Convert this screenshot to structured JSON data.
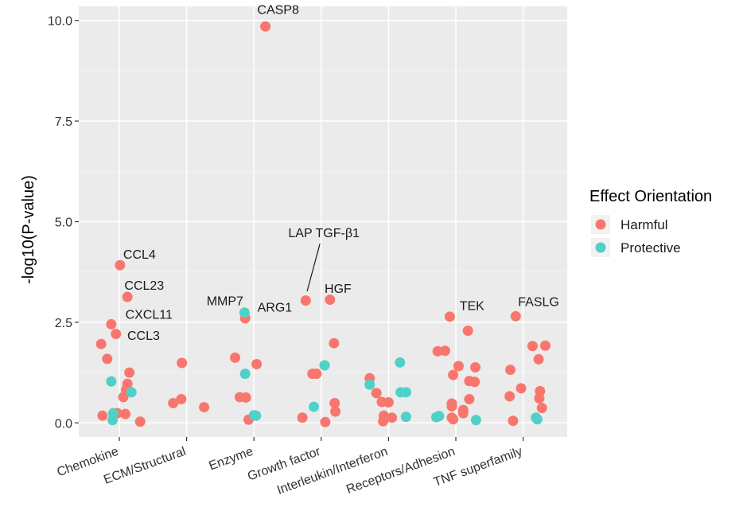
{
  "chart_data": {
    "type": "scatter",
    "title": "",
    "xlabel": "",
    "ylabel": "-log10(P-value)",
    "ylim": [
      -0.35,
      10.35
    ],
    "yticks": [
      0.0,
      2.5,
      5.0,
      7.5,
      10.0
    ],
    "ytick_labels": [
      "0.0",
      "2.5",
      "5.0",
      "7.5",
      "10.0"
    ],
    "categories": [
      "Chemokine",
      "ECM/Structural",
      "Enzyme",
      "Growth factor",
      "Interleukin/Interferon",
      "Receptors/Adhesion",
      "TNF superfamily"
    ],
    "legend": {
      "title": "Effect Orientation",
      "position": "right",
      "entries": [
        {
          "name": "Harmful",
          "color": "#F8766D"
        },
        {
          "name": "Protective",
          "color": "#4FD0C8"
        }
      ]
    },
    "series": [
      {
        "name": "Harmful",
        "color": "#F8766D",
        "points": [
          {
            "category": 0,
            "jitter": 0.01,
            "y": 3.92
          },
          {
            "category": 0,
            "jitter": 0.12,
            "y": 3.13
          },
          {
            "category": 0,
            "jitter": -0.12,
            "y": 2.45
          },
          {
            "category": 0,
            "jitter": -0.05,
            "y": 2.21
          },
          {
            "category": 0,
            "jitter": -0.27,
            "y": 1.96
          },
          {
            "category": 0,
            "jitter": -0.18,
            "y": 1.59
          },
          {
            "category": 0,
            "jitter": 0.15,
            "y": 1.25
          },
          {
            "category": 0,
            "jitter": 0.12,
            "y": 0.97
          },
          {
            "category": 0,
            "jitter": 0.1,
            "y": 0.82
          },
          {
            "category": 0,
            "jitter": 0.06,
            "y": 0.64
          },
          {
            "category": 0,
            "jitter": -0.03,
            "y": 0.24
          },
          {
            "category": 0,
            "jitter": 0.09,
            "y": 0.22
          },
          {
            "category": 0,
            "jitter": -0.25,
            "y": 0.18
          },
          {
            "category": 0,
            "jitter": 0.31,
            "y": 0.03
          },
          {
            "category": 1,
            "jitter": -0.07,
            "y": 1.49
          },
          {
            "category": 1,
            "jitter": -0.08,
            "y": 0.59
          },
          {
            "category": 1,
            "jitter": -0.2,
            "y": 0.49
          },
          {
            "category": 1,
            "jitter": 0.26,
            "y": 0.39
          },
          {
            "category": 2,
            "jitter": 0.17,
            "y": 9.85
          },
          {
            "category": 2,
            "jitter": -0.13,
            "y": 2.6
          },
          {
            "category": 2,
            "jitter": -0.28,
            "y": 1.62
          },
          {
            "category": 2,
            "jitter": 0.04,
            "y": 1.46
          },
          {
            "category": 2,
            "jitter": -0.21,
            "y": 0.64
          },
          {
            "category": 2,
            "jitter": -0.12,
            "y": 0.63
          },
          {
            "category": 2,
            "jitter": -0.08,
            "y": 0.08
          },
          {
            "category": 3,
            "jitter": -0.23,
            "y": 3.04
          },
          {
            "category": 3,
            "jitter": 0.13,
            "y": 3.06
          },
          {
            "category": 3,
            "jitter": -0.13,
            "y": 1.22
          },
          {
            "category": 3,
            "jitter": -0.07,
            "y": 1.22
          },
          {
            "category": 3,
            "jitter": 0.19,
            "y": 1.98
          },
          {
            "category": 3,
            "jitter": 0.2,
            "y": 0.49
          },
          {
            "category": 3,
            "jitter": 0.21,
            "y": 0.28
          },
          {
            "category": 3,
            "jitter": -0.28,
            "y": 0.13
          },
          {
            "category": 3,
            "jitter": 0.06,
            "y": 0.02
          },
          {
            "category": 4,
            "jitter": -0.28,
            "y": 1.11
          },
          {
            "category": 4,
            "jitter": -0.18,
            "y": 0.74
          },
          {
            "category": 4,
            "jitter": -0.1,
            "y": 0.52
          },
          {
            "category": 4,
            "jitter": 0.0,
            "y": 0.51
          },
          {
            "category": 4,
            "jitter": -0.07,
            "y": 0.18
          },
          {
            "category": 4,
            "jitter": 0.05,
            "y": 0.13
          },
          {
            "category": 4,
            "jitter": -0.08,
            "y": 0.04
          },
          {
            "category": 5,
            "jitter": -0.09,
            "y": 2.64
          },
          {
            "category": 5,
            "jitter": 0.18,
            "y": 2.29
          },
          {
            "category": 5,
            "jitter": -0.27,
            "y": 1.78
          },
          {
            "category": 5,
            "jitter": -0.16,
            "y": 1.79
          },
          {
            "category": 5,
            "jitter": 0.04,
            "y": 1.41
          },
          {
            "category": 5,
            "jitter": 0.29,
            "y": 1.38
          },
          {
            "category": 5,
            "jitter": -0.04,
            "y": 1.19
          },
          {
            "category": 5,
            "jitter": 0.2,
            "y": 1.04
          },
          {
            "category": 5,
            "jitter": 0.28,
            "y": 1.02
          },
          {
            "category": 5,
            "jitter": 0.2,
            "y": 0.59
          },
          {
            "category": 5,
            "jitter": -0.06,
            "y": 0.48
          },
          {
            "category": 5,
            "jitter": -0.06,
            "y": 0.41
          },
          {
            "category": 5,
            "jitter": 0.11,
            "y": 0.32
          },
          {
            "category": 5,
            "jitter": 0.11,
            "y": 0.24
          },
          {
            "category": 5,
            "jitter": -0.06,
            "y": 0.13
          },
          {
            "category": 5,
            "jitter": -0.04,
            "y": 0.09
          },
          {
            "category": 6,
            "jitter": -0.11,
            "y": 2.65
          },
          {
            "category": 6,
            "jitter": 0.14,
            "y": 1.91
          },
          {
            "category": 6,
            "jitter": 0.33,
            "y": 1.92
          },
          {
            "category": 6,
            "jitter": 0.23,
            "y": 1.58
          },
          {
            "category": 6,
            "jitter": -0.19,
            "y": 1.32
          },
          {
            "category": 6,
            "jitter": -0.03,
            "y": 0.86
          },
          {
            "category": 6,
            "jitter": 0.25,
            "y": 0.79
          },
          {
            "category": 6,
            "jitter": -0.2,
            "y": 0.66
          },
          {
            "category": 6,
            "jitter": 0.24,
            "y": 0.61
          },
          {
            "category": 6,
            "jitter": 0.28,
            "y": 0.37
          },
          {
            "category": 6,
            "jitter": -0.15,
            "y": 0.05
          }
        ]
      },
      {
        "name": "Protective",
        "color": "#4FD0C8",
        "points": [
          {
            "category": 0,
            "jitter": -0.12,
            "y": 1.03
          },
          {
            "category": 0,
            "jitter": 0.18,
            "y": 0.76
          },
          {
            "category": 0,
            "jitter": -0.09,
            "y": 0.24
          },
          {
            "category": 0,
            "jitter": -0.1,
            "y": 0.07
          },
          {
            "category": 2,
            "jitter": -0.14,
            "y": 2.74
          },
          {
            "category": 2,
            "jitter": -0.13,
            "y": 1.22
          },
          {
            "category": 2,
            "jitter": 0.0,
            "y": 0.19
          },
          {
            "category": 2,
            "jitter": 0.03,
            "y": 0.18
          },
          {
            "category": 3,
            "jitter": 0.05,
            "y": 1.43
          },
          {
            "category": 3,
            "jitter": -0.11,
            "y": 0.4
          },
          {
            "category": 4,
            "jitter": -0.28,
            "y": 0.95
          },
          {
            "category": 4,
            "jitter": 0.17,
            "y": 1.5
          },
          {
            "category": 4,
            "jitter": 0.18,
            "y": 0.76
          },
          {
            "category": 4,
            "jitter": 0.26,
            "y": 0.76
          },
          {
            "category": 4,
            "jitter": 0.26,
            "y": 0.15
          },
          {
            "category": 5,
            "jitter": -0.29,
            "y": 0.14
          },
          {
            "category": 5,
            "jitter": -0.25,
            "y": 0.17
          },
          {
            "category": 5,
            "jitter": 0.3,
            "y": 0.07
          },
          {
            "category": 6,
            "jitter": 0.19,
            "y": 0.13
          },
          {
            "category": 6,
            "jitter": 0.21,
            "y": 0.09
          }
        ]
      }
    ],
    "annotations": [
      {
        "text": "CASP8",
        "category": 2,
        "jitter": 0.36,
        "y": 10.28,
        "anchor": "middle"
      },
      {
        "text": "CCL4",
        "category": 0,
        "jitter": 0.3,
        "y": 4.2,
        "anchor": "middle"
      },
      {
        "text": "CCL23",
        "category": 0,
        "jitter": 0.37,
        "y": 3.43,
        "anchor": "middle"
      },
      {
        "text": "CXCL11",
        "category": 0,
        "jitter": 0.44,
        "y": 2.71,
        "anchor": "middle"
      },
      {
        "text": "CCL3",
        "category": 0,
        "jitter": 0.36,
        "y": 2.18,
        "anchor": "middle"
      },
      {
        "text": "MMP7",
        "category": 2,
        "jitter": -0.43,
        "y": 3.04,
        "anchor": "middle"
      },
      {
        "text": "ARG1",
        "category": 2,
        "jitter": 0.31,
        "y": 2.88,
        "anchor": "middle"
      },
      {
        "text": "LAP TGF-β1",
        "category": 3,
        "jitter": 0.04,
        "y": 4.73,
        "anchor": "middle"
      },
      {
        "text": "HGF",
        "category": 3,
        "jitter": 0.25,
        "y": 3.35,
        "anchor": "middle"
      },
      {
        "text": "TEK",
        "category": 5,
        "jitter": 0.24,
        "y": 2.92,
        "anchor": "middle"
      },
      {
        "text": "FASLG",
        "category": 6,
        "jitter": 0.23,
        "y": 3.02,
        "anchor": "middle"
      }
    ],
    "connectors": [
      {
        "from_category": 3,
        "from_jitter": -0.02,
        "from_y": 4.45,
        "to_category": 3,
        "to_jitter": -0.21,
        "to_y": 3.27
      }
    ]
  }
}
